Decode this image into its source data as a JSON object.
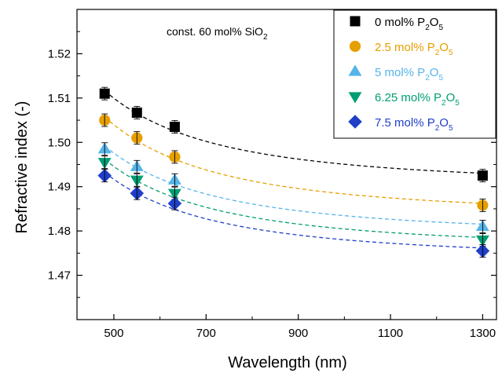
{
  "chart_data": {
    "type": "scatter",
    "xlabel": "Wavelength (nm)",
    "ylabel": "Refractive index (-)",
    "xlim": [
      420,
      1330
    ],
    "ylim": [
      1.46,
      1.53
    ],
    "xticks": [
      500,
      700,
      900,
      1100,
      1300
    ],
    "yticks": [
      1.47,
      1.48,
      1.49,
      1.5,
      1.51,
      1.52
    ],
    "xtick_labels": [
      "500",
      "700",
      "900",
      "1100",
      "1300"
    ],
    "ytick_labels": [
      "1.47",
      "1.48",
      "1.49",
      "1.50",
      "1.51",
      "1.52"
    ],
    "annotation": {
      "text": "const. 60 mol% SiO",
      "sub": "2"
    },
    "legend_position": "top-right",
    "grid": false,
    "x": [
      480,
      550,
      632,
      1300
    ],
    "series": [
      {
        "name": "0 mol% P",
        "sub1": "2",
        "mid": "O",
        "sub2": "5",
        "marker": "square",
        "color": "#000000",
        "values": [
          1.511,
          1.5067,
          1.5035,
          1.4925
        ]
      },
      {
        "name": "2.5 mol% P",
        "sub1": "2",
        "mid": "O",
        "sub2": "5",
        "marker": "circle",
        "color": "#E69F00",
        "values": [
          1.505,
          1.501,
          1.4967,
          1.4858
        ]
      },
      {
        "name": "5 mol% P",
        "sub1": "2",
        "mid": "O",
        "sub2": "5",
        "marker": "triangle-up",
        "color": "#56B4E9",
        "values": [
          1.4985,
          1.4945,
          1.4915,
          1.481
        ]
      },
      {
        "name": "6.25 mol% P",
        "sub1": "2",
        "mid": "O",
        "sub2": "5",
        "marker": "triangle-down",
        "color": "#009E73",
        "values": [
          1.4955,
          1.4915,
          1.4885,
          1.478
        ]
      },
      {
        "name": "7.5 mol% P",
        "sub1": "2",
        "mid": "O",
        "sub2": "5",
        "marker": "diamond",
        "color": "#1F3FC8",
        "values": [
          1.4925,
          1.4885,
          1.4862,
          1.4755
        ]
      }
    ]
  }
}
